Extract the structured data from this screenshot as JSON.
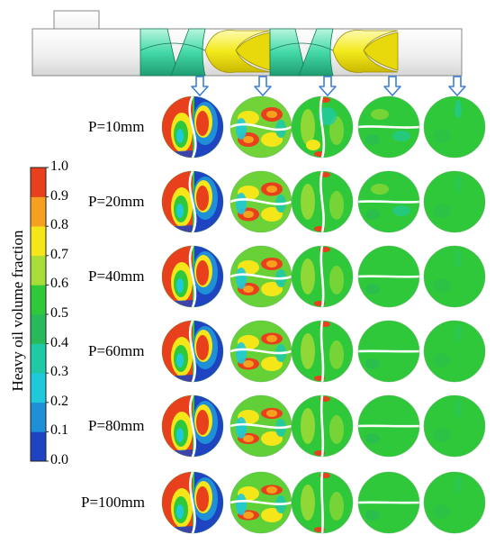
{
  "rows": [
    {
      "label": "P=10mm",
      "dividers": [
        62,
        55,
        35,
        12,
        2
      ]
    },
    {
      "label": "P=20mm",
      "dividers": [
        58,
        48,
        30,
        10,
        2
      ]
    },
    {
      "label": "P=40mm",
      "dividers": [
        55,
        42,
        22,
        7,
        1
      ]
    },
    {
      "label": "P=60mm",
      "dividers": [
        52,
        38,
        18,
        5,
        1
      ]
    },
    {
      "label": "P=80mm",
      "dividers": [
        50,
        35,
        15,
        4,
        1
      ]
    },
    {
      "label": "P=100mm",
      "dividers": [
        48,
        32,
        12,
        3,
        1
      ]
    }
  ],
  "colorbar": {
    "title": "Heavy oil volume fraction",
    "ticks": [
      "1.0",
      "0.9",
      "0.8",
      "0.7",
      "0.6",
      "0.5",
      "0.4",
      "0.3",
      "0.2",
      "0.1",
      "0.0"
    ],
    "colors": [
      "#e8401c",
      "#f5a01e",
      "#f4e619",
      "#a8dc36",
      "#2fc83a",
      "#28b95a",
      "#1fc9a6",
      "#1ec9d9",
      "#1f8fd8",
      "#1f44c2"
    ]
  },
  "colors": {
    "pipe": "#e6e6e6",
    "pipe_stroke": "#888888",
    "element_green": "#44d9a8",
    "element_yellow": "#f3ea1c",
    "arrow": "#3a7fd8",
    "base_green": "#2fc83a"
  }
}
